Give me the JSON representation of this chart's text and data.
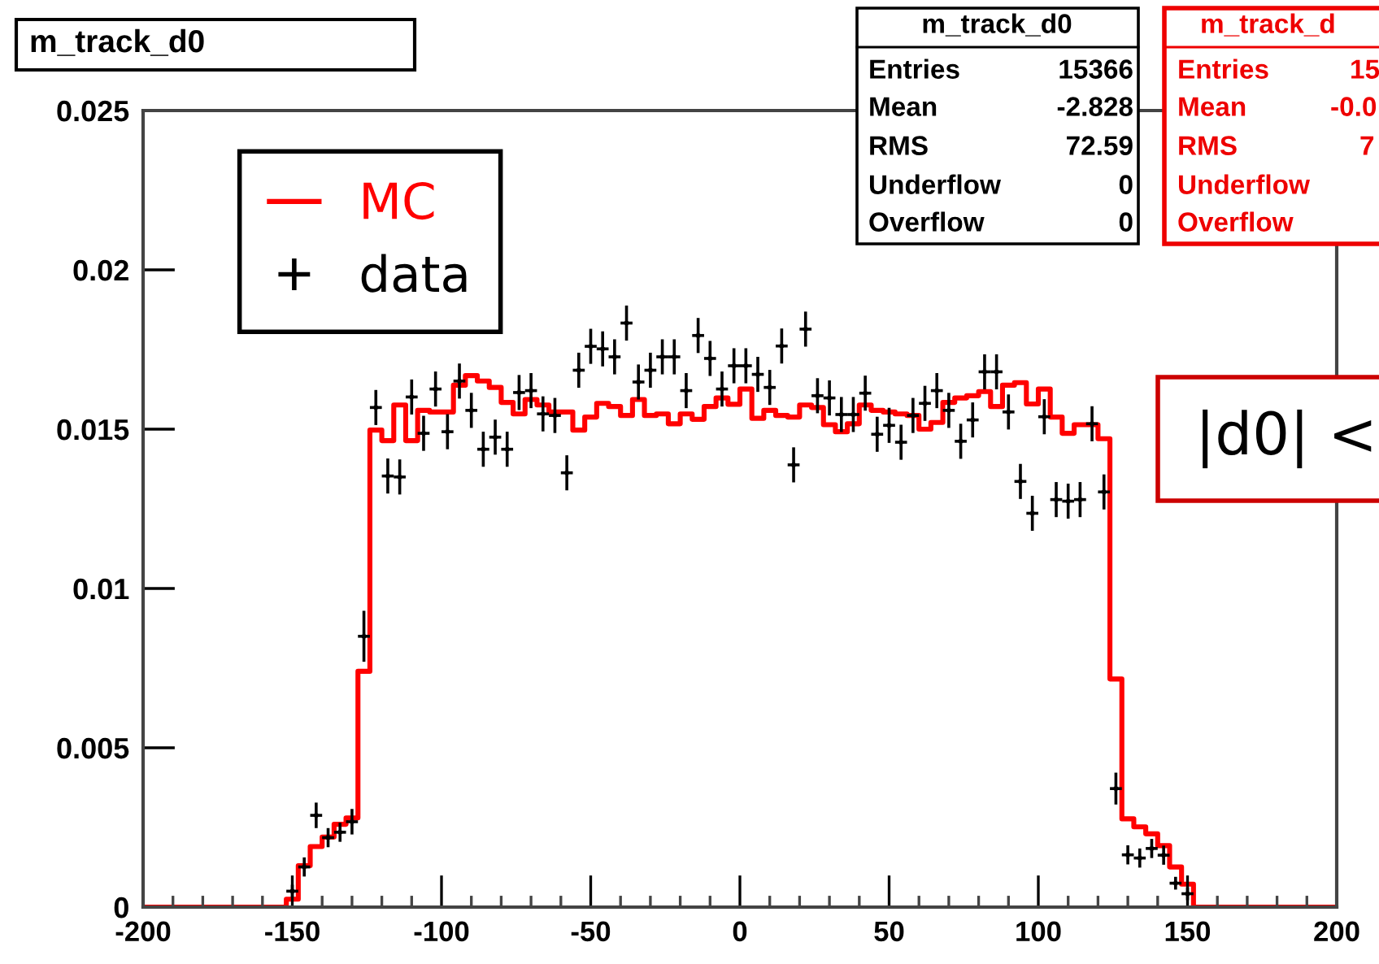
{
  "chart_data": {
    "type": "histogram",
    "title": "m_track_d0",
    "bins": [
      -200,
      -196,
      -192,
      -188,
      -184,
      -180,
      -176,
      -172,
      -168,
      -164,
      -160,
      -156,
      -152,
      -148,
      -144,
      -140,
      -136,
      -132,
      -128,
      -124,
      -120,
      -116,
      -112,
      -108,
      -104,
      -100,
      -96,
      -92,
      -88,
      -84,
      -80,
      -76,
      -72,
      -68,
      -64,
      -60,
      -56,
      -52,
      -48,
      -44,
      -40,
      -36,
      -32,
      -28,
      -24,
      -20,
      -16,
      -12,
      -8,
      -4,
      0,
      4,
      8,
      12,
      16,
      20,
      24,
      28,
      32,
      36,
      40,
      44,
      48,
      52,
      56,
      60,
      64,
      68,
      72,
      76,
      80,
      84,
      88,
      92,
      96,
      100,
      104,
      108,
      112,
      116,
      120,
      124,
      128,
      132,
      136,
      140,
      144,
      148,
      152,
      156,
      160,
      164,
      168,
      172,
      176,
      180,
      184,
      188,
      192,
      196,
      200
    ],
    "series": [
      {
        "name": "MC",
        "color": "#ff0000",
        "values": [
          0,
          0,
          0,
          0,
          0,
          0,
          0,
          0,
          0,
          0,
          0,
          0,
          0.00025,
          0.0013,
          0.0019,
          0.0022,
          0.0026,
          0.0028,
          0.0074,
          0.01497,
          0.01464,
          0.01576,
          0.01464,
          0.01559,
          0.01554,
          0.01554,
          0.01638,
          0.01668,
          0.01651,
          0.01631,
          0.01584,
          0.01548,
          0.01593,
          0.01576,
          0.01554,
          0.01554,
          0.01497,
          0.01538,
          0.01581,
          0.01571,
          0.01543,
          0.01593,
          0.01543,
          0.01548,
          0.01517,
          0.01548,
          0.01531,
          0.01571,
          0.01598,
          0.01578,
          0.01626,
          0.01534,
          0.01559,
          0.01543,
          0.01538,
          0.01576,
          0.01568,
          0.01514,
          0.01492,
          0.01517,
          0.01576,
          0.01559,
          0.01554,
          0.01548,
          0.01543,
          0.015,
          0.01521,
          0.01584,
          0.01598,
          0.01605,
          0.01618,
          0.01571,
          0.01638,
          0.01646,
          0.01579,
          0.01626,
          0.01538,
          0.01487,
          0.01514,
          0.01514,
          0.0147,
          0.00716,
          0.00277,
          0.00252,
          0.0023,
          0.00193,
          0.00126,
          0.00072,
          0,
          0,
          0,
          0,
          0,
          0,
          0,
          0,
          0,
          0,
          0,
          0
        ]
      },
      {
        "name": "data",
        "type": "scatter",
        "color": "#000000",
        "x": [
          -150,
          -146,
          -142,
          -138,
          -134,
          -130,
          -126,
          -122,
          -118,
          -114,
          -110,
          -106,
          -102,
          -98,
          -94,
          -90,
          -86,
          -82,
          -78,
          -74,
          -70,
          -66,
          -62,
          -58,
          -54,
          -50,
          -46,
          -42,
          -38,
          -34,
          -30,
          -26,
          -22,
          -18,
          -14,
          -10,
          -6,
          -2,
          2,
          6,
          10,
          14,
          18,
          22,
          26,
          30,
          34,
          38,
          42,
          46,
          50,
          54,
          58,
          62,
          66,
          70,
          74,
          78,
          82,
          86,
          90,
          94,
          98,
          102,
          106,
          110,
          114,
          118,
          122,
          126,
          130,
          134,
          138,
          142,
          146,
          150
        ],
        "values": [
          0.0005,
          0.00126,
          0.00288,
          0.00218,
          0.00235,
          0.00268,
          0.0085,
          0.01568,
          0.01353,
          0.0135,
          0.01601,
          0.01487,
          0.01626,
          0.01492,
          0.01651,
          0.01559,
          0.01437,
          0.01475,
          0.01437,
          0.01615,
          0.01621,
          0.01548,
          0.01543,
          0.01363,
          0.01685,
          0.0176,
          0.01752,
          0.01727,
          0.01833,
          0.01648,
          0.01685,
          0.01727,
          0.01727,
          0.01621,
          0.01794,
          0.01722,
          0.01626,
          0.01699,
          0.01699,
          0.01672,
          0.01631,
          0.01761,
          0.01388,
          0.01814,
          0.01605,
          0.01598,
          0.01546,
          0.01546,
          0.01613,
          0.01484,
          0.01512,
          0.01459,
          0.01543,
          0.01581,
          0.01621,
          0.01559,
          0.01462,
          0.01529,
          0.0168,
          0.0168,
          0.01554,
          0.01336,
          0.01236,
          0.01539,
          0.01279,
          0.01274,
          0.01279,
          0.01517,
          0.01303,
          0.00372,
          0.00164,
          0.00154,
          0.00184,
          0.00163,
          0.00075,
          0.00042
        ],
        "errors": [
          0.0002,
          0.0003,
          0.0004,
          0.0003,
          0.0003,
          0.0004,
          0.0008,
          0.00055,
          0.00055,
          0.00055,
          0.00055,
          0.00055,
          0.00055,
          0.00055,
          0.00055,
          0.00055,
          0.00055,
          0.00055,
          0.00055,
          0.00055,
          0.00055,
          0.00055,
          0.00055,
          0.00055,
          0.00055,
          0.00055,
          0.00055,
          0.00055,
          0.00055,
          0.00055,
          0.00055,
          0.00055,
          0.00055,
          0.00055,
          0.00055,
          0.00055,
          0.00055,
          0.00055,
          0.00055,
          0.00055,
          0.00055,
          0.00055,
          0.00055,
          0.00055,
          0.00055,
          0.00055,
          0.00055,
          0.00055,
          0.00055,
          0.00055,
          0.00055,
          0.00055,
          0.00055,
          0.00055,
          0.00055,
          0.00055,
          0.00055,
          0.00055,
          0.00055,
          0.00055,
          0.00055,
          0.00055,
          0.00055,
          0.00055,
          0.00055,
          0.00055,
          0.00055,
          0.00055,
          0.00055,
          0.0005,
          0.0003,
          0.0003,
          0.0003,
          0.0003,
          0.0002,
          0.0002
        ],
        "xerrors": [
          2,
          2,
          2,
          2,
          2,
          2,
          2,
          2,
          2,
          2,
          2,
          2,
          2,
          2,
          2,
          2,
          2,
          2,
          2,
          2,
          2,
          2,
          2,
          2,
          2,
          2,
          2,
          2,
          2,
          2,
          2,
          2,
          2,
          2,
          2,
          2,
          2,
          2,
          2,
          2,
          2,
          2,
          2,
          2,
          2,
          2,
          2,
          2,
          2,
          2,
          2,
          2,
          2,
          2,
          2,
          2,
          2,
          2,
          2,
          2,
          2,
          2,
          2,
          2,
          2,
          2,
          2,
          2,
          2,
          2,
          2,
          2,
          2,
          2,
          2,
          2
        ]
      }
    ],
    "xlim": [
      -200,
      200
    ],
    "ylim": [
      0,
      0.025
    ],
    "xticks": [
      -200,
      -150,
      -100,
      -50,
      0,
      50,
      100,
      150,
      200
    ],
    "yticks": [
      0,
      0.005,
      0.01,
      0.015,
      0.02,
      0.025
    ],
    "legend": "top left",
    "annotations": [
      "m_track_d0",
      "Entries",
      "15366",
      "Mean",
      "-2.828",
      "RMS",
      "72.59",
      "Underflow",
      "0",
      "Overflow",
      "0",
      "m_track_d",
      "Entries",
      "15",
      "Mean",
      "-0.0",
      "RMS",
      "7",
      "Underflow",
      "Overflow",
      "|d0| <"
    ]
  }
}
